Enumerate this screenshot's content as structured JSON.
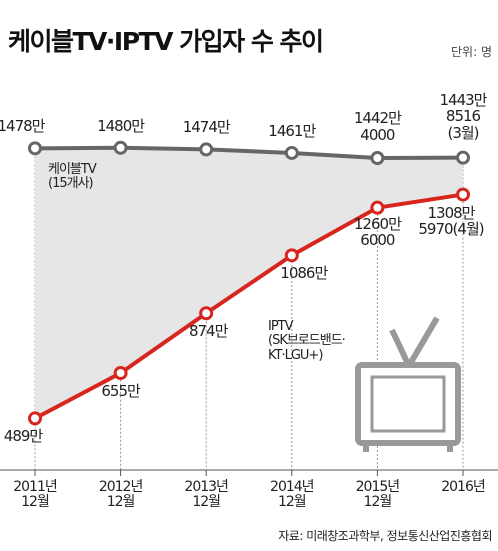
{
  "chart_data": {
    "type": "line",
    "title": "케이블TV·IPTV 가입자 수 추이",
    "unit_note": "단위: 명",
    "categories": [
      "2011년\n12월",
      "2012년\n12월",
      "2013년\n12월",
      "2014년\n12월",
      "2015년\n12월",
      "2016년"
    ],
    "series": [
      {
        "name": "케이블TV\n(15개사)",
        "color": "#666666",
        "values": [
          14780000,
          14800000,
          14740000,
          14610000,
          14424000,
          14438516
        ],
        "value_labels": [
          "1478만",
          "1480만",
          "1474만",
          "1461만",
          "1442만\n4000",
          "1443만\n8516\n(3월)"
        ]
      },
      {
        "name": "IPTV\n(SK브로드밴드·\nKT·LGU+)",
        "color": "#d7261e",
        "values": [
          4890000,
          6550000,
          8740000,
          10860000,
          12606000,
          13085970
        ],
        "value_labels": [
          "489만",
          "655만",
          "874만",
          "1086만",
          "1260만\n6000",
          "1308만\n5970(4월)"
        ]
      }
    ],
    "ylim": [
      3000000,
      16000000
    ],
    "source": "자료: 미래창조과학부, 정보통신산업진흥협회"
  }
}
